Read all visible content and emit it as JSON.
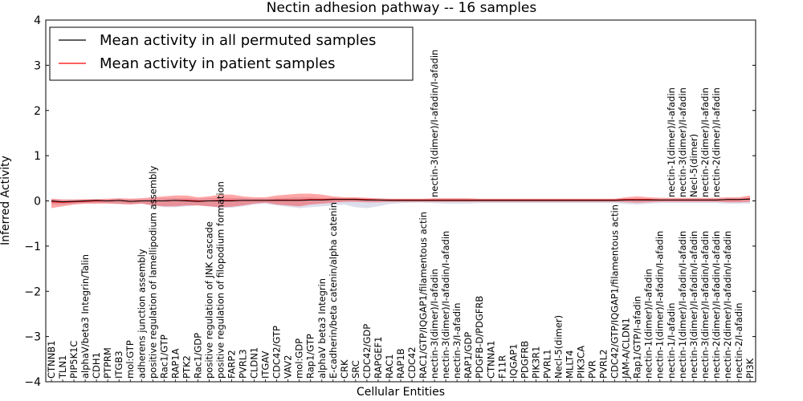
{
  "chart_data": {
    "type": "line",
    "title": "Nectin adhesion pathway -- 16 samples",
    "xlabel": "Cellular Entities",
    "ylabel": "Inferred Activity",
    "ylim": [
      -4,
      4
    ],
    "yticks": [
      -4,
      -3,
      -2,
      -1,
      0,
      1,
      2,
      3,
      4
    ],
    "ytick_labels": [
      "−4",
      "−3",
      "−2",
      "−1",
      "0",
      "1",
      "2",
      "3",
      "4"
    ],
    "legend": {
      "position": "top-left",
      "entries": [
        {
          "label": "Mean activity in all permuted samples",
          "color": "#000000"
        },
        {
          "label": "Mean activity in patient samples",
          "color": "#ff0000"
        }
      ]
    },
    "categories": [
      "CTNNB1",
      "TLN1",
      "PIP5K1C",
      "alphaV/beta3 Integrin/Talin",
      "CDH1",
      "PTPRM",
      "ITGB3",
      "mol:GTP",
      "adherens junction assembly",
      "positive regulation of lamellipodium assembly",
      "Rac1/GTP",
      "RAP1A",
      "PTK2",
      "Rac1/GDP",
      "positive regulation of JNK cascade",
      "positive regulation of filopodium formation",
      "FARP2",
      "PVRL3",
      "CLDN1",
      "ITGAV",
      "CDC42/GTP",
      "VAV2",
      "mol:GDP",
      "Rap1/GTP",
      "alphaV beta3 Integrin",
      "E-cadherin/beta catenin/alpha catenin",
      "CRK",
      "SRC",
      "CDC42/GDP",
      "RAPGEF1",
      "RAC1",
      "RAP1B",
      "CDC42",
      "RAC1/GTP/IQGAP1/filamentous actin",
      "nectin-3(dimer)/I-afadin",
      "nectin-3(dimer)/I-afadin/I-afadin",
      "nectin-3/I-afadin",
      "RAP1/GDP",
      "PDGFB-D/PDGFRB",
      "CTNNA1",
      "F11R",
      "IQGAP1",
      "PDGFRB",
      "PIK3R1",
      "PVRL1",
      "Necl-5(dimer)",
      "MLLT4",
      "PIK3CA",
      "PVR",
      "PVRL2",
      "CDC42/GTP/IQGAP1/filamentous actin",
      "JAM-A/CLDN1",
      "Rap1/GTP/I-afadin",
      "nectin-1(dimer)/I-afadin",
      "nectin-1(dimer)/I-afadin/I-afadin",
      "nectin-1/I-afadin",
      "nectin-1(dimer)/I-afadin/I-afadin",
      "nectin-3(dimer)/I-afadin/I-afadin",
      "nectin-3(dimer)/I-afadin/I-afadin",
      "nectin-2(dimer)/I-afadin/I-afadin",
      "nectin-2(dimer)/I-afadin/I-afadin",
      "nectin-2/I-afadin",
      "PI3K"
    ],
    "upper_labels": [
      {
        "index": 34,
        "label": "nectin-3(dimer)/I-afadin/I-afadin"
      },
      {
        "index": 55,
        "label": "nectin-1(dimer)/I-afadin"
      },
      {
        "index": 56,
        "label": "nectin-3(dimer)/I-afadin"
      },
      {
        "index": 57,
        "label": "Necl-5(dimer)"
      },
      {
        "index": 58,
        "label": "nectin-2(dimer)/I-afadin"
      },
      {
        "index": 59,
        "label": "nectin-2(dimer)/I-afadin"
      }
    ],
    "series": [
      {
        "name": "Mean activity in all permuted samples",
        "color": "#000000",
        "values": [
          0.0,
          -0.02,
          -0.01,
          0.0,
          0.01,
          0.0,
          0.01,
          -0.01,
          0.0,
          0.0,
          0.0,
          0.01,
          0.0,
          -0.01,
          0.0,
          0.0,
          0.0,
          0.01,
          0.01,
          0.01,
          0.01,
          0.01,
          0.01,
          0.02,
          0.02,
          0.03,
          0.03,
          0.03,
          0.02,
          0.02,
          0.01,
          0.01,
          0.01,
          0.01,
          0.01,
          0.01,
          0.01,
          0.01,
          0.01,
          0.01,
          0.01,
          0.01,
          0.01,
          0.01,
          0.01,
          0.01,
          0.01,
          0.01,
          0.01,
          0.01,
          0.01,
          0.02,
          0.02,
          0.02,
          0.02,
          0.02,
          0.02,
          0.02,
          0.02,
          0.02,
          0.03,
          0.03,
          0.04
        ]
      },
      {
        "name": "Mean activity in patient samples",
        "color": "#ff0000",
        "values": [
          -0.02,
          -0.03,
          -0.02,
          -0.01,
          0.0,
          0.0,
          0.01,
          -0.01,
          0.0,
          0.0,
          0.0,
          0.01,
          0.01,
          0.0,
          0.0,
          0.01,
          0.01,
          0.01,
          0.01,
          0.01,
          0.02,
          0.02,
          0.02,
          0.03,
          0.03,
          0.04,
          0.04,
          0.04,
          0.03,
          0.02,
          0.02,
          0.02,
          0.02,
          0.02,
          0.02,
          0.02,
          0.02,
          0.02,
          0.02,
          0.02,
          0.02,
          0.02,
          0.02,
          0.02,
          0.02,
          0.02,
          0.02,
          0.02,
          0.02,
          0.02,
          0.02,
          0.03,
          0.03,
          0.03,
          0.02,
          0.02,
          0.02,
          0.02,
          0.02,
          0.02,
          0.03,
          0.03,
          0.05
        ],
        "band_upper": [
          0.05,
          0.03,
          0.03,
          0.04,
          0.04,
          0.05,
          0.06,
          0.05,
          0.06,
          0.08,
          0.1,
          0.12,
          0.12,
          0.08,
          0.1,
          0.14,
          0.14,
          0.1,
          0.08,
          0.08,
          0.12,
          0.14,
          0.16,
          0.16,
          0.14,
          0.1,
          0.08,
          0.08,
          0.07,
          0.06,
          0.05,
          0.05,
          0.05,
          0.05,
          0.06,
          0.06,
          0.06,
          0.06,
          0.05,
          0.05,
          0.05,
          0.05,
          0.05,
          0.05,
          0.05,
          0.05,
          0.05,
          0.05,
          0.05,
          0.05,
          0.05,
          0.08,
          0.1,
          0.08,
          0.07,
          0.07,
          0.07,
          0.07,
          0.07,
          0.07,
          0.08,
          0.08,
          0.12
        ],
        "band_lower": [
          -0.16,
          -0.12,
          -0.08,
          -0.06,
          -0.06,
          -0.06,
          -0.07,
          -0.08,
          -0.06,
          -0.1,
          -0.12,
          -0.12,
          -0.1,
          -0.1,
          -0.12,
          -0.14,
          -0.13,
          -0.1,
          -0.06,
          -0.04,
          -0.08,
          -0.1,
          -0.12,
          -0.08,
          -0.06,
          -0.04,
          -0.02,
          -0.02,
          -0.03,
          -0.03,
          -0.02,
          -0.02,
          -0.02,
          -0.02,
          -0.02,
          -0.02,
          -0.02,
          -0.02,
          -0.02,
          -0.02,
          -0.02,
          -0.02,
          -0.02,
          -0.02,
          -0.02,
          -0.02,
          -0.02,
          -0.02,
          -0.02,
          -0.02,
          -0.02,
          -0.03,
          -0.04,
          -0.03,
          -0.02,
          -0.02,
          -0.02,
          -0.02,
          -0.02,
          -0.02,
          -0.03,
          -0.03,
          -0.02
        ]
      }
    ],
    "permuted_band_upper": [
      0.04,
      0.03,
      0.03,
      0.03,
      0.03,
      0.03,
      0.04,
      0.04,
      0.04,
      0.05,
      0.06,
      0.06,
      0.06,
      0.05,
      0.06,
      0.07,
      0.07,
      0.06,
      0.05,
      0.05,
      0.06,
      0.07,
      0.08,
      0.08,
      0.07,
      0.06,
      0.05,
      0.05,
      0.05,
      0.04,
      0.04,
      0.04,
      0.04,
      0.04,
      0.04,
      0.04,
      0.04,
      0.04,
      0.04,
      0.04,
      0.04,
      0.04,
      0.04,
      0.04,
      0.04,
      0.04,
      0.04,
      0.04,
      0.04,
      0.04,
      0.04,
      0.05,
      0.05,
      0.05,
      0.04,
      0.04,
      0.04,
      0.04,
      0.04,
      0.04,
      0.05,
      0.05,
      0.06
    ],
    "permuted_band_lower": [
      -0.08,
      -0.08,
      -0.06,
      -0.05,
      -0.05,
      -0.05,
      -0.06,
      -0.07,
      -0.06,
      -0.1,
      -0.14,
      -0.14,
      -0.12,
      -0.1,
      -0.12,
      -0.16,
      -0.15,
      -0.12,
      -0.08,
      -0.06,
      -0.1,
      -0.13,
      -0.16,
      -0.14,
      -0.12,
      -0.1,
      -0.08,
      -0.14,
      -0.16,
      -0.12,
      -0.07,
      -0.05,
      -0.04,
      -0.04,
      -0.05,
      -0.06,
      -0.06,
      -0.06,
      -0.05,
      -0.05,
      -0.05,
      -0.05,
      -0.05,
      -0.05,
      -0.05,
      -0.05,
      -0.05,
      -0.05,
      -0.05,
      -0.05,
      -0.05,
      -0.07,
      -0.08,
      -0.06,
      -0.05,
      -0.05,
      -0.05,
      -0.05,
      -0.05,
      -0.05,
      -0.06,
      -0.06,
      -0.06
    ]
  }
}
